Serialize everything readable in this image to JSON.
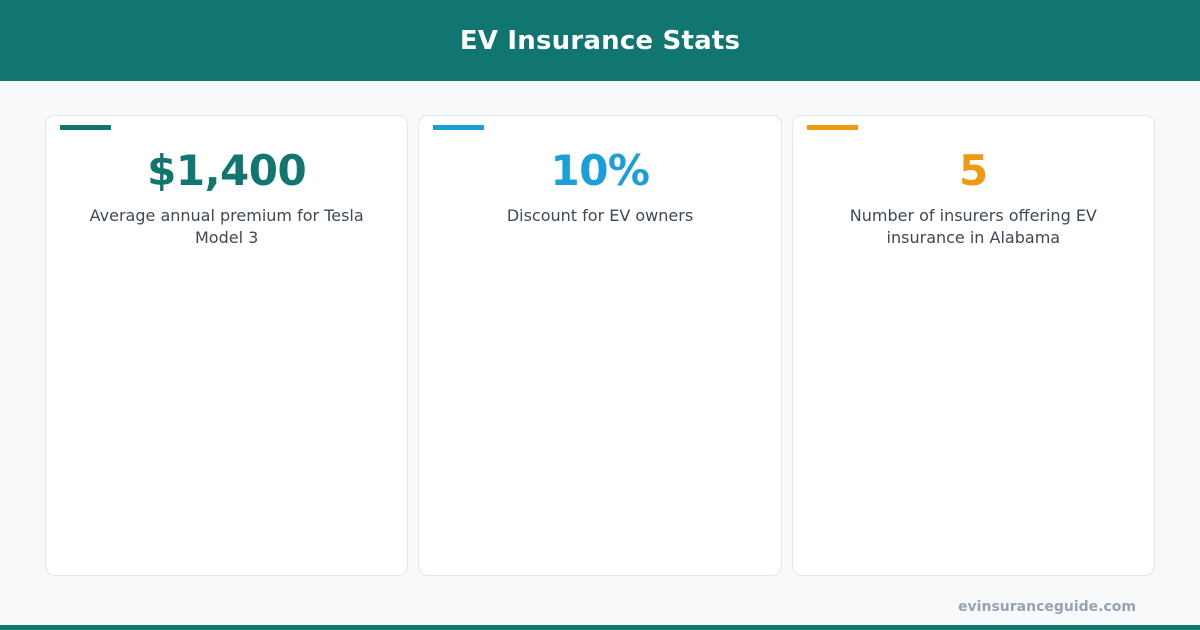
{
  "header": {
    "title": "EV Insurance Stats"
  },
  "stats": [
    {
      "value": "$1,400",
      "description": "Average annual premium for Tesla Model 3",
      "color": "#10766f"
    },
    {
      "value": "10%",
      "description": "Discount for EV owners",
      "color": "#1a9fd8"
    },
    {
      "value": "5",
      "description": "Number of insurers offering EV insurance in Alabama",
      "color": "#f09a13"
    }
  ],
  "footer": {
    "site": "evinsuranceguide.com"
  },
  "colors": {
    "brand": "#10766f",
    "background": "#f7f9fb",
    "text": "#3d4957",
    "muted": "#97a3b0"
  }
}
